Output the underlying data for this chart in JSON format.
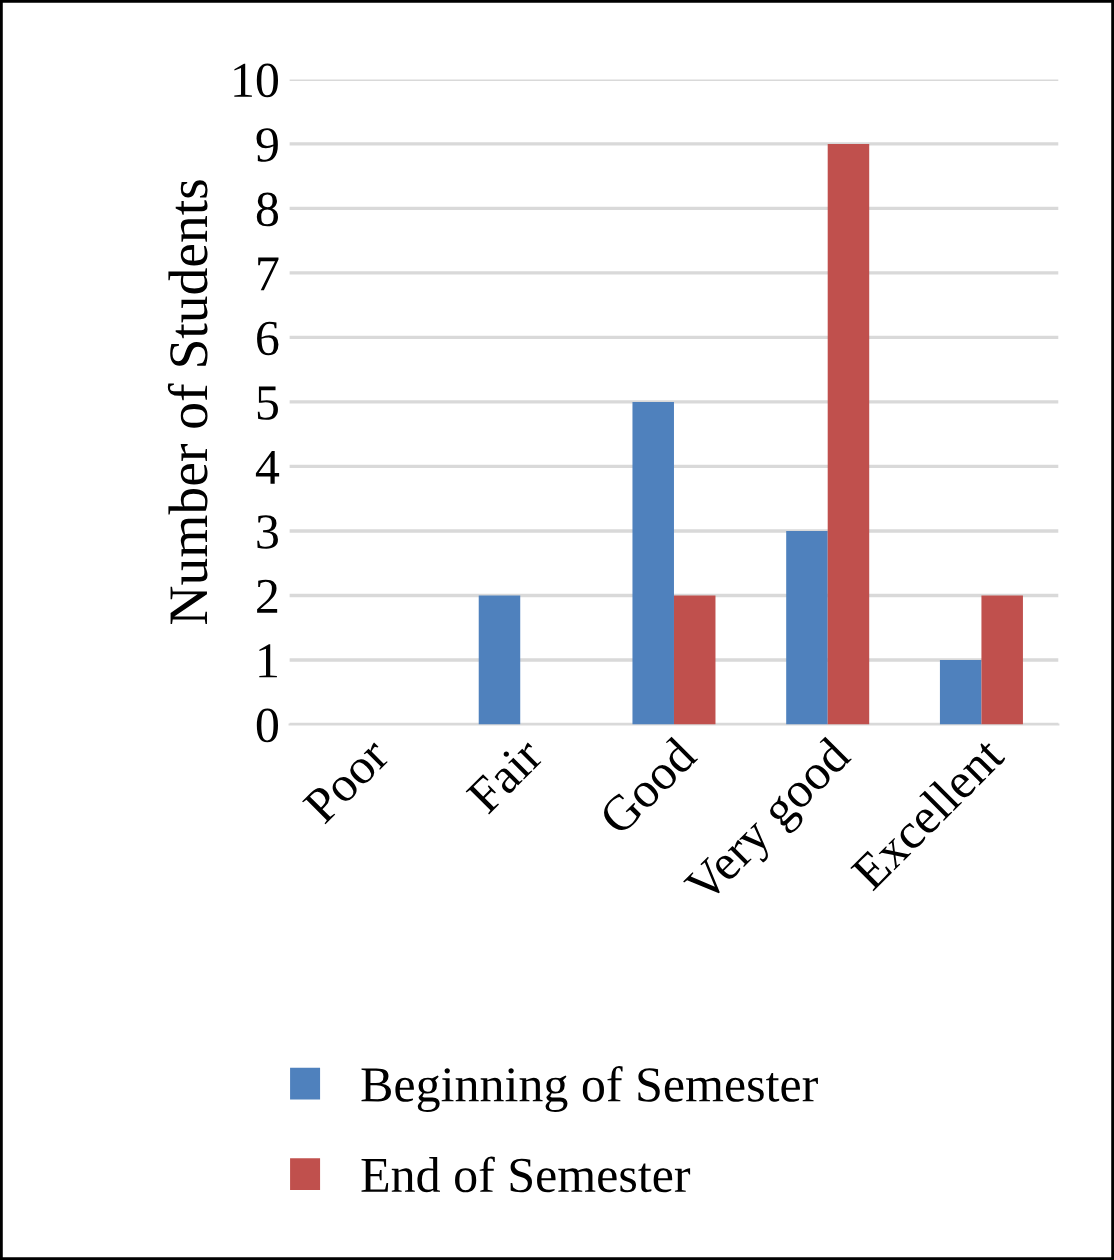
{
  "chart_data": {
    "type": "bar",
    "ylabel": "Number of Students",
    "categories": [
      "Poor",
      "Fair",
      "Good",
      "Very good",
      "Excellent"
    ],
    "series": [
      {
        "name": "Beginning of Semester",
        "color": "#4f81bd",
        "values": [
          0,
          2,
          5,
          3,
          1
        ]
      },
      {
        "name": "End of Semester",
        "color": "#c0504d",
        "values": [
          0,
          0,
          2,
          9,
          2
        ]
      }
    ],
    "ylim": [
      0,
      10
    ],
    "yticks": [
      0,
      1,
      2,
      3,
      4,
      5,
      6,
      7,
      8,
      9,
      10
    ],
    "grid": "y",
    "legend": "bottom"
  }
}
